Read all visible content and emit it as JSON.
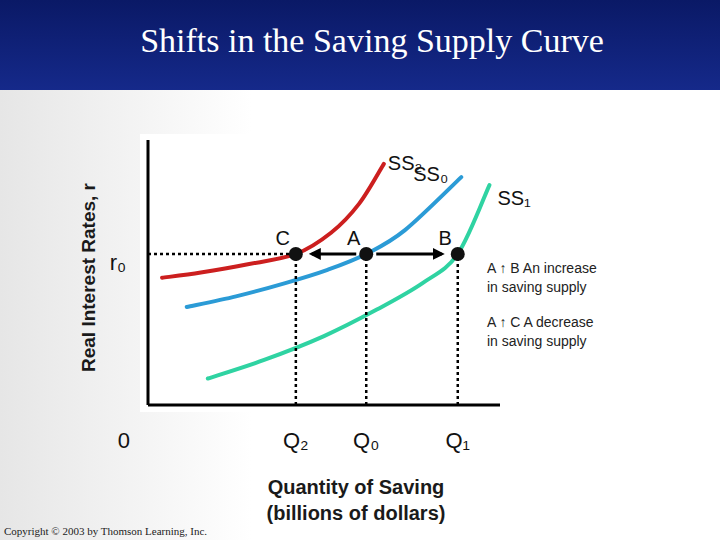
{
  "chart_data": {
    "type": "line",
    "title": "Shifts in the Saving Supply Curve",
    "ylabel": "Real Interest Rates, r",
    "xlabel": [
      "Quantity of Saving",
      "(billions of dollars)"
    ],
    "xlim": [
      0,
      10
    ],
    "ylim": [
      0,
      10
    ],
    "xticks": [
      0,
      {
        "value": 4.2,
        "label": "Q₂"
      },
      {
        "value": 6.2,
        "label": "Q₀"
      },
      {
        "value": 8.8,
        "label": "Q₁"
      }
    ],
    "yticks": [
      {
        "value": 5.7,
        "label": "r₀"
      }
    ],
    "series": [
      {
        "name": "SS₂",
        "color": "#cc1f1f",
        "x": [
          0.4,
          1.5,
          2.8,
          4.2,
          5.2,
          6.0,
          6.7
        ],
        "values": [
          4.8,
          5.0,
          5.3,
          5.7,
          6.5,
          7.6,
          9.1
        ]
      },
      {
        "name": "SS₀",
        "color": "#2b9bd6",
        "x": [
          1.1,
          2.5,
          3.9,
          5.1,
          6.2,
          7.3,
          8.9
        ],
        "values": [
          3.7,
          4.1,
          4.6,
          5.1,
          5.7,
          6.6,
          8.6
        ]
      },
      {
        "name": "SS₁",
        "color": "#2fd3a2",
        "x": [
          1.7,
          3.3,
          5.0,
          6.5,
          7.8,
          8.8,
          9.7
        ],
        "values": [
          1.0,
          1.7,
          2.6,
          3.6,
          4.6,
          5.7,
          8.3
        ]
      }
    ],
    "points": [
      {
        "label": "C",
        "x": 4.2,
        "y": 5.7
      },
      {
        "label": "A",
        "x": 6.2,
        "y": 5.7
      },
      {
        "label": "B",
        "x": 8.8,
        "y": 5.7
      }
    ],
    "arrows": [
      {
        "from": "A",
        "to": "C"
      },
      {
        "from": "A",
        "to": "B"
      }
    ],
    "annotations": [
      {
        "lines": [
          "A ↑ B An increase",
          "in saving supply"
        ]
      },
      {
        "lines": [
          "A ↑ C A decrease",
          "in saving supply"
        ]
      }
    ],
    "copyright": "Copyright © 2003 by Thomson Learning, Inc."
  }
}
